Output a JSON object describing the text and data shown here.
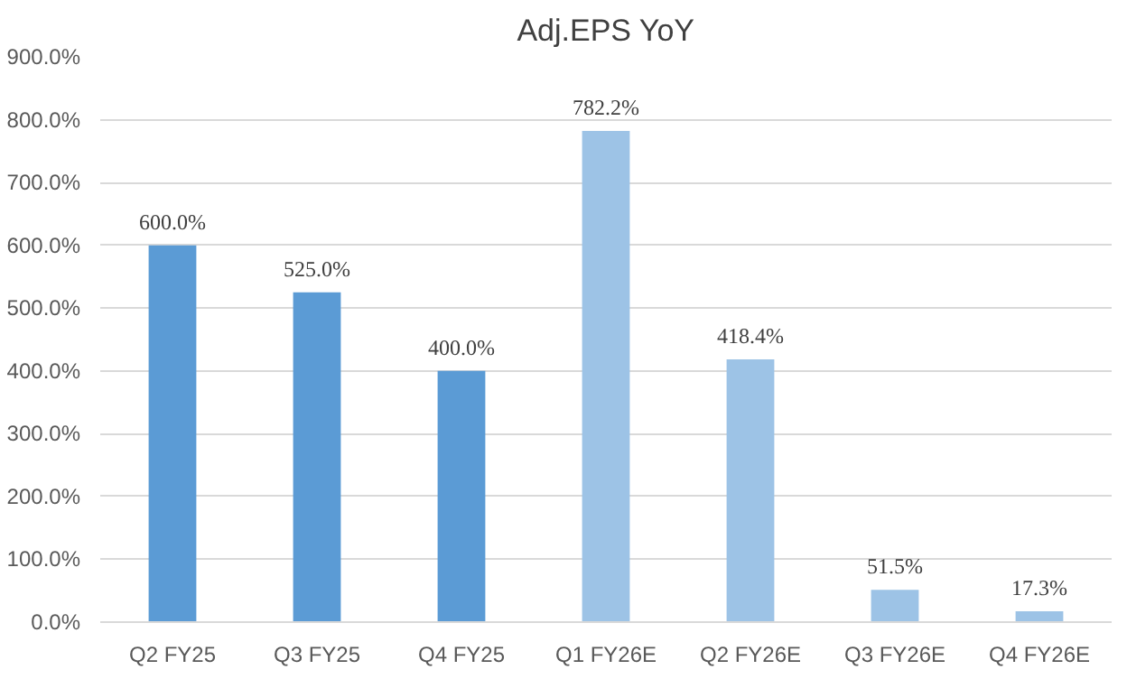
{
  "chart_data": {
    "type": "bar",
    "title": "Adj.EPS YoY",
    "categories": [
      "Q2 FY25",
      "Q3 FY25",
      "Q4 FY25",
      "Q1 FY26E",
      "Q2 FY26E",
      "Q3 FY26E",
      "Q4 FY26E"
    ],
    "values": [
      600.0,
      525.0,
      400.0,
      782.2,
      418.4,
      51.5,
      17.3
    ],
    "colors": [
      "#5b9bd5",
      "#5b9bd5",
      "#5b9bd5",
      "#9dc3e6",
      "#9dc3e6",
      "#9dc3e6",
      "#9dc3e6"
    ],
    "value_labels": [
      "600.0%",
      "525.0%",
      "400.0%",
      "782.2%",
      "418.4%",
      "51.5%",
      "17.3%"
    ],
    "ylim": [
      0,
      900
    ],
    "yticks": [
      {
        "value": 0,
        "label": "0.0%"
      },
      {
        "value": 100,
        "label": "100.0%"
      },
      {
        "value": 200,
        "label": "200.0%"
      },
      {
        "value": 300,
        "label": "300.0%"
      },
      {
        "value": 400,
        "label": "400.0%"
      },
      {
        "value": 500,
        "label": "500.0%"
      },
      {
        "value": 600,
        "label": "600.0%"
      },
      {
        "value": 700,
        "label": "700.0%"
      },
      {
        "value": 800,
        "label": "800.0%"
      },
      {
        "value": 900,
        "label": "900.0%"
      }
    ],
    "grid": "y"
  }
}
